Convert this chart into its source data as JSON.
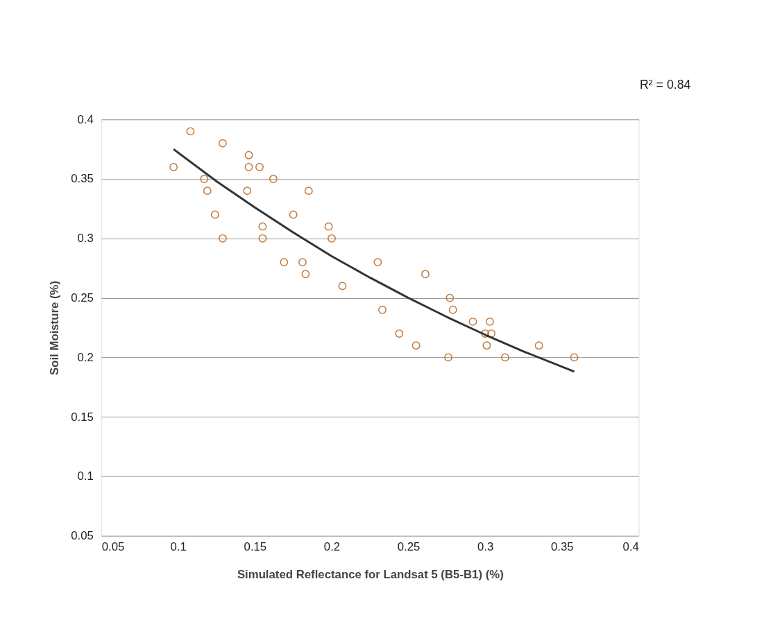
{
  "chart_data": {
    "type": "scatter",
    "xlabel": "Simulated Reflectance for Landsat 5  (B5-B1) (%)",
    "ylabel": "Soil Moisture (%)",
    "annotations": [
      "R² = 0.84"
    ],
    "xlim": [
      0.05,
      0.4
    ],
    "xticks": [
      0.05,
      0.1,
      0.15,
      0.2,
      0.25,
      0.3,
      0.35,
      0.4
    ],
    "ylim": [
      0.05,
      0.4
    ],
    "yticks": [
      0.05,
      0.1,
      0.15,
      0.2,
      0.25,
      0.3,
      0.35,
      0.4
    ],
    "grid": "y",
    "series": [
      {
        "marker": "circle",
        "color": "#c0783a",
        "x": [
          0.097,
          0.108,
          0.117,
          0.119,
          0.124,
          0.129,
          0.129,
          0.146,
          0.146,
          0.145,
          0.153,
          0.155,
          0.155,
          0.162,
          0.169,
          0.175,
          0.181,
          0.183,
          0.185,
          0.198,
          0.2,
          0.207,
          0.23,
          0.233,
          0.244,
          0.255,
          0.261,
          0.277,
          0.276,
          0.279,
          0.292,
          0.3,
          0.303,
          0.304,
          0.301,
          0.313,
          0.335,
          0.358
        ],
        "values": [
          0.36,
          0.39,
          0.35,
          0.34,
          0.32,
          0.3,
          0.38,
          0.37,
          0.36,
          0.34,
          0.36,
          0.31,
          0.3,
          0.35,
          0.28,
          0.32,
          0.28,
          0.27,
          0.34,
          0.31,
          0.3,
          0.26,
          0.28,
          0.24,
          0.22,
          0.21,
          0.27,
          0.25,
          0.2,
          0.24,
          0.23,
          0.22,
          0.23,
          0.22,
          0.21,
          0.2,
          0.21,
          0.2
        ]
      },
      {
        "type": "line",
        "marker": "none",
        "color": "#333333",
        "x": [
          0.097,
          0.125,
          0.15,
          0.175,
          0.2,
          0.225,
          0.25,
          0.275,
          0.3,
          0.325,
          0.358
        ],
        "values": [
          0.375,
          0.348,
          0.326,
          0.305,
          0.285,
          0.267,
          0.25,
          0.234,
          0.219,
          0.205,
          0.188
        ]
      }
    ]
  }
}
